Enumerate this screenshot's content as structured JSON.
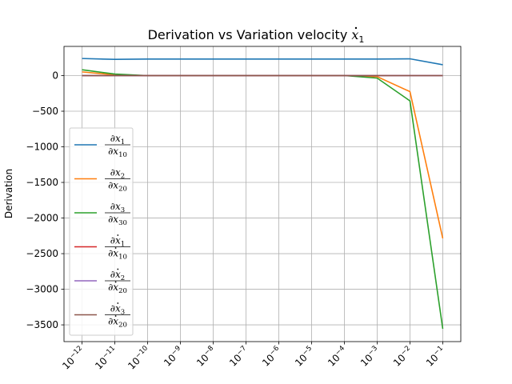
{
  "chart_data": {
    "type": "line",
    "title": "Derivation vs Variation velocity",
    "title_math": {
      "base": "x",
      "sub": "1",
      "dot": true
    },
    "xlabel": "",
    "ylabel": "Derivation",
    "xscale": "log",
    "x": [
      -12,
      -11,
      -10,
      -9,
      -8,
      -7,
      -6,
      -5,
      -4,
      -3,
      -2,
      -1
    ],
    "xtick_labels": [
      {
        "base": "10",
        "exp": "−12"
      },
      {
        "base": "10",
        "exp": "−11"
      },
      {
        "base": "10",
        "exp": "−10"
      },
      {
        "base": "10",
        "exp": "−9"
      },
      {
        "base": "10",
        "exp": "−8"
      },
      {
        "base": "10",
        "exp": "−7"
      },
      {
        "base": "10",
        "exp": "−6"
      },
      {
        "base": "10",
        "exp": "−5"
      },
      {
        "base": "10",
        "exp": "−4"
      },
      {
        "base": "10",
        "exp": "−3"
      },
      {
        "base": "10",
        "exp": "−2"
      },
      {
        "base": "10",
        "exp": "−1"
      }
    ],
    "ylim": [
      -3735,
      410
    ],
    "yticks": [
      0,
      -500,
      -1000,
      -1500,
      -2000,
      -2500,
      -3000,
      -3500
    ],
    "ytick_labels": [
      "0",
      "−500",
      "−1000",
      "−1500",
      "−2000",
      "−2500",
      "−3000",
      "−3500"
    ],
    "grid": true,
    "legend_position": "lower-left",
    "series": [
      {
        "name": "∂x1/∂x10",
        "num": {
          "base": "∂x",
          "sub": "1",
          "dot": false
        },
        "den": {
          "base": "∂x",
          "sub": "10",
          "dot": false
        },
        "color": "#1f77b4",
        "values": [
          240,
          228,
          232,
          232,
          232,
          232,
          232,
          232,
          232,
          232,
          236,
          152
        ]
      },
      {
        "name": "∂x2/∂x20",
        "num": {
          "base": "∂x",
          "sub": "2",
          "dot": false
        },
        "den": {
          "base": "∂x",
          "sub": "20",
          "dot": false
        },
        "color": "#ff7f0e",
        "values": [
          52,
          10,
          0,
          0,
          0,
          0,
          0,
          0,
          0,
          -15,
          -225,
          -2285
        ]
      },
      {
        "name": "∂x3/∂x30",
        "num": {
          "base": "∂x",
          "sub": "3",
          "dot": false
        },
        "den": {
          "base": "∂x",
          "sub": "30",
          "dot": false
        },
        "color": "#2ca02c",
        "values": [
          82,
          22,
          0,
          0,
          0,
          0,
          0,
          0,
          0,
          -35,
          -355,
          -3555
        ]
      },
      {
        "name": "∂ẋ1/∂ẋ10",
        "num": {
          "base": "∂x",
          "sub": "1",
          "dot": true
        },
        "den": {
          "base": "∂x",
          "sub": "10",
          "dot": true
        },
        "color": "#d62728",
        "values": [
          0,
          0,
          0,
          0,
          0,
          0,
          0,
          0,
          0,
          0,
          0,
          0
        ]
      },
      {
        "name": "∂ẋ2/∂ẋ20",
        "num": {
          "base": "∂x",
          "sub": "2",
          "dot": true
        },
        "den": {
          "base": "∂x",
          "sub": "20",
          "dot": true
        },
        "color": "#9467bd",
        "values": [
          0,
          0,
          0,
          0,
          0,
          0,
          0,
          0,
          0,
          0,
          0,
          0
        ]
      },
      {
        "name": "∂ẋ3/∂ẋ20",
        "num": {
          "base": "∂x",
          "sub": "3",
          "dot": true
        },
        "den": {
          "base": "∂x",
          "sub": "20",
          "dot": true
        },
        "color": "#8c564b",
        "values": [
          0,
          0,
          0,
          0,
          0,
          0,
          0,
          0,
          0,
          0,
          0,
          0
        ]
      }
    ]
  }
}
